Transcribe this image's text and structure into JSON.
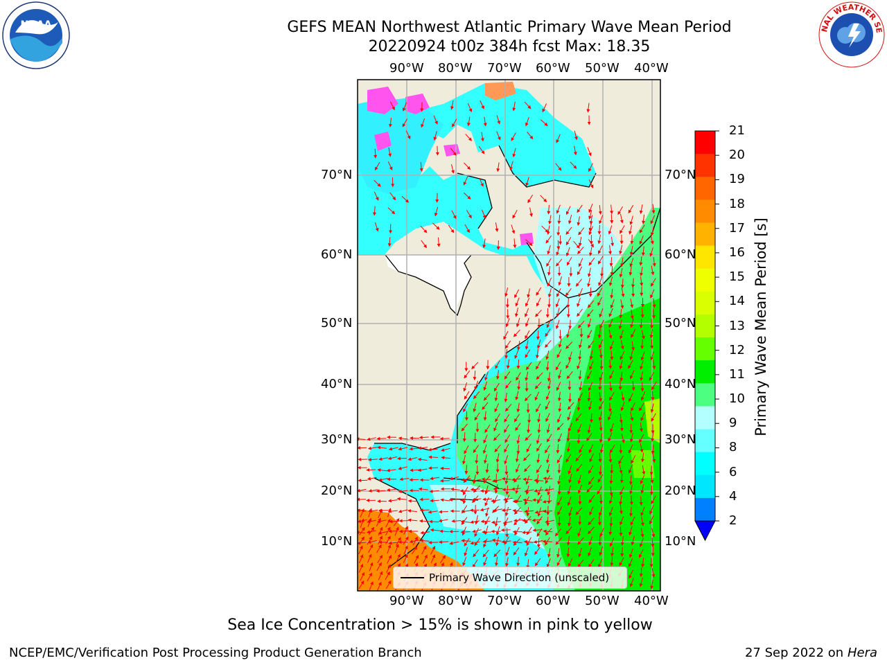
{
  "title": {
    "line1": "GEFS MEAN Northwest Atlantic Primary Wave Mean Period",
    "line2": "20220924 t00z 384h fcst   Max: 18.35"
  },
  "logos": {
    "left": "NOAA",
    "right": "NATIONAL WEATHER SERVICE"
  },
  "map": {
    "lon_ticks": [
      "90°W",
      "80°W",
      "70°W",
      "60°W",
      "50°W",
      "40°W"
    ],
    "lat_ticks": [
      "70°N",
      "60°N",
      "50°N",
      "40°N",
      "30°N",
      "20°N",
      "10°N"
    ],
    "legend_label": "Primary Wave Direction (unscaled)",
    "land_color": "#efecdc",
    "arrow_color": "#ff0000"
  },
  "colorbar": {
    "label": "Primary Wave Mean Period [s]",
    "ticks": [
      "21",
      "20",
      "19",
      "18",
      "17",
      "16",
      "15",
      "14",
      "13",
      "12",
      "11",
      "10",
      "9",
      "8",
      "6",
      "4",
      "2"
    ],
    "colors": [
      "#ff0000",
      "#ff3300",
      "#ff6600",
      "#ff8c00",
      "#ffb300",
      "#ffe600",
      "#f0ff00",
      "#d9ff00",
      "#b3ff00",
      "#66ff00",
      "#00ee00",
      "#4cff80",
      "#b3ffff",
      "#66ffff",
      "#00ffff",
      "#00e6ff",
      "#0080ff"
    ],
    "underflow_color": "#0000ff"
  },
  "footer": {
    "note": "Sea Ice Concentration > 15% is shown in pink to yellow",
    "credit_left": "NCEP/EMC/Verification Post Processing Product Generation Branch",
    "credit_date": "27 Sep 2022 on",
    "credit_host": "Hera"
  }
}
